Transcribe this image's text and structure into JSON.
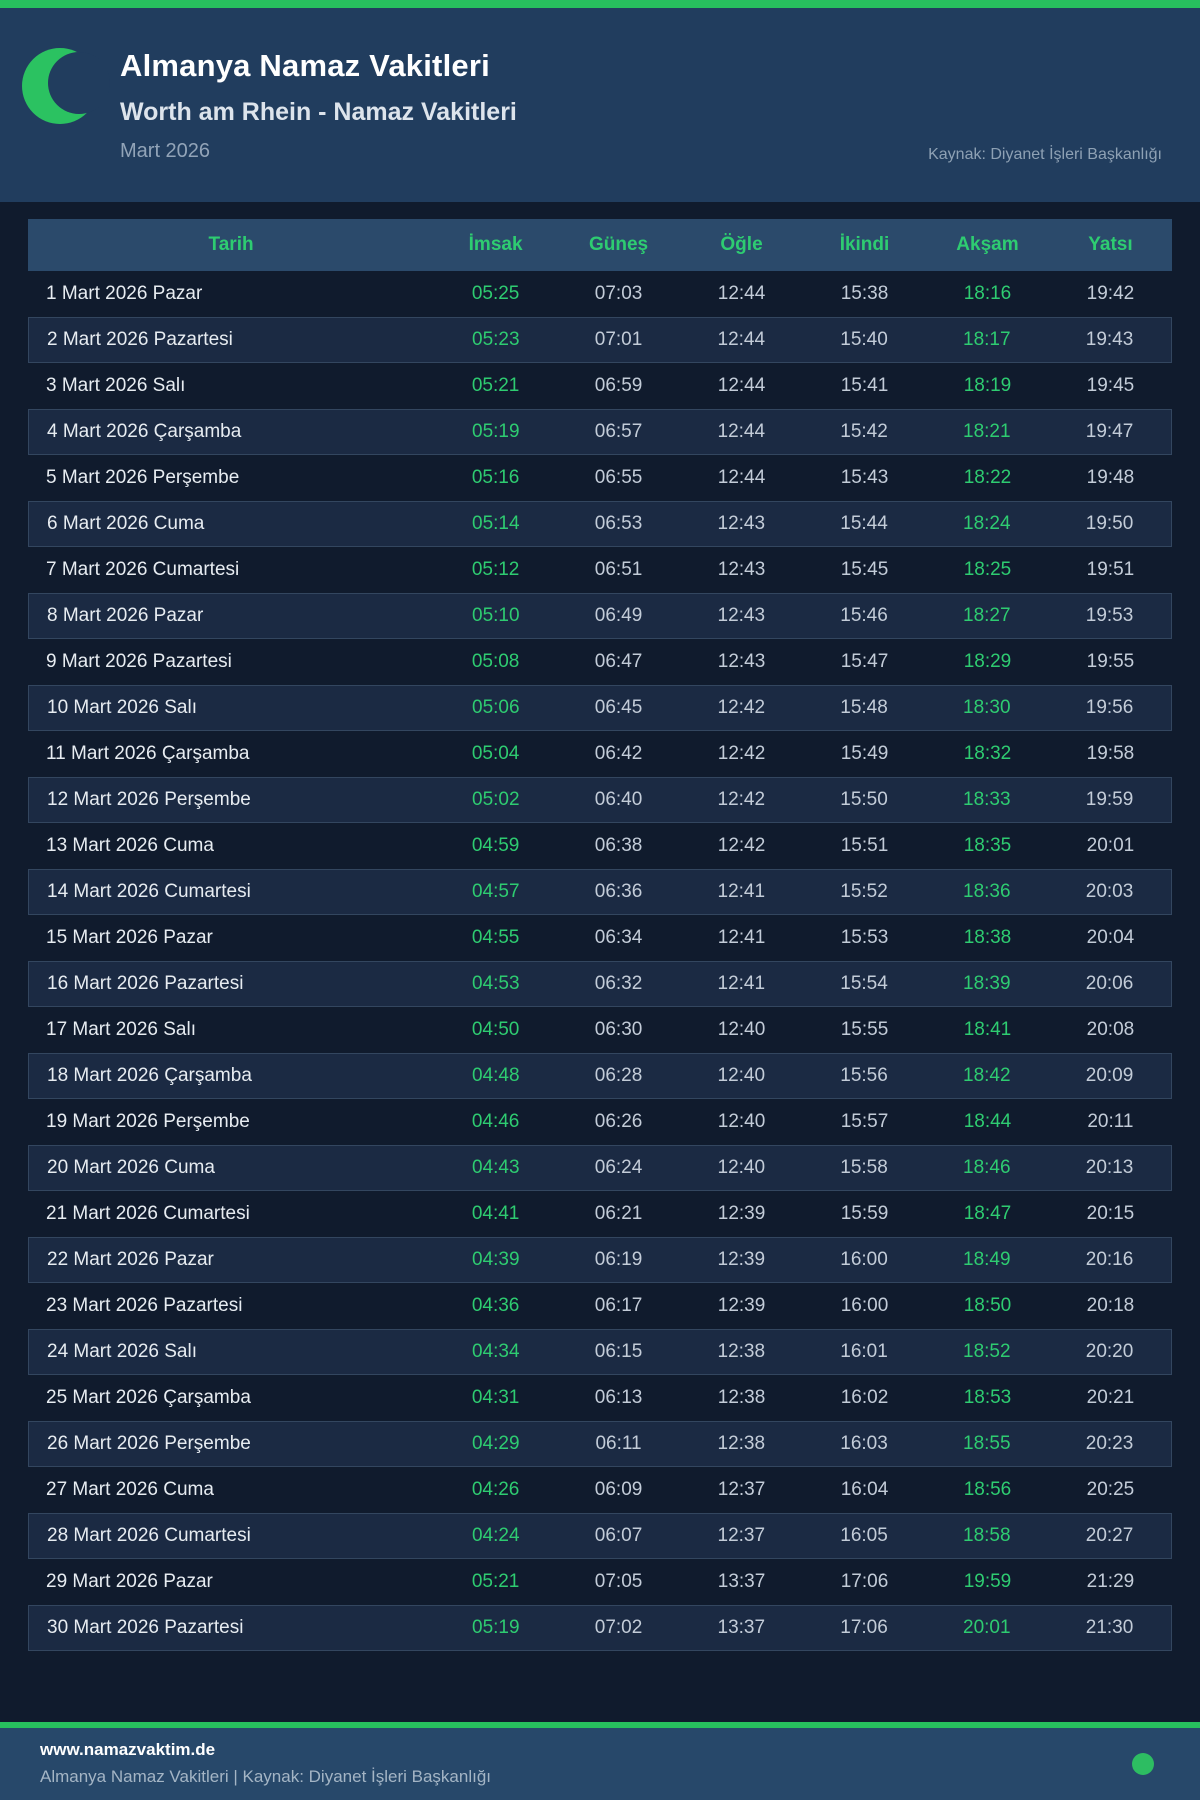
{
  "header": {
    "title": "Almanya Namaz Vakitleri",
    "subtitle": "Worth am Rhein - Namaz Vakitleri",
    "period": "Mart 2026",
    "source": "Kaynak: Diyanet İşleri Başkanlığı"
  },
  "table": {
    "columns": [
      "Tarih",
      "İmsak",
      "Güneş",
      "Öğle",
      "İkindi",
      "Akşam",
      "Yatsı"
    ],
    "green_time_columns": [
      "İmsak",
      "Akşam"
    ],
    "rows": [
      {
        "date": "1 Mart 2026 Pazar",
        "times": [
          "05:25",
          "07:03",
          "12:44",
          "15:38",
          "18:16",
          "19:42"
        ]
      },
      {
        "date": "2 Mart 2026 Pazartesi",
        "times": [
          "05:23",
          "07:01",
          "12:44",
          "15:40",
          "18:17",
          "19:43"
        ]
      },
      {
        "date": "3 Mart 2026 Salı",
        "times": [
          "05:21",
          "06:59",
          "12:44",
          "15:41",
          "18:19",
          "19:45"
        ]
      },
      {
        "date": "4 Mart 2026 Çarşamba",
        "times": [
          "05:19",
          "06:57",
          "12:44",
          "15:42",
          "18:21",
          "19:47"
        ]
      },
      {
        "date": "5 Mart 2026 Perşembe",
        "times": [
          "05:16",
          "06:55",
          "12:44",
          "15:43",
          "18:22",
          "19:48"
        ]
      },
      {
        "date": "6 Mart 2026 Cuma",
        "times": [
          "05:14",
          "06:53",
          "12:43",
          "15:44",
          "18:24",
          "19:50"
        ]
      },
      {
        "date": "7 Mart 2026 Cumartesi",
        "times": [
          "05:12",
          "06:51",
          "12:43",
          "15:45",
          "18:25",
          "19:51"
        ]
      },
      {
        "date": "8 Mart 2026 Pazar",
        "times": [
          "05:10",
          "06:49",
          "12:43",
          "15:46",
          "18:27",
          "19:53"
        ]
      },
      {
        "date": "9 Mart 2026 Pazartesi",
        "times": [
          "05:08",
          "06:47",
          "12:43",
          "15:47",
          "18:29",
          "19:55"
        ]
      },
      {
        "date": "10 Mart 2026 Salı",
        "times": [
          "05:06",
          "06:45",
          "12:42",
          "15:48",
          "18:30",
          "19:56"
        ]
      },
      {
        "date": "11 Mart 2026 Çarşamba",
        "times": [
          "05:04",
          "06:42",
          "12:42",
          "15:49",
          "18:32",
          "19:58"
        ]
      },
      {
        "date": "12 Mart 2026 Perşembe",
        "times": [
          "05:02",
          "06:40",
          "12:42",
          "15:50",
          "18:33",
          "19:59"
        ]
      },
      {
        "date": "13 Mart 2026 Cuma",
        "times": [
          "04:59",
          "06:38",
          "12:42",
          "15:51",
          "18:35",
          "20:01"
        ]
      },
      {
        "date": "14 Mart 2026 Cumartesi",
        "times": [
          "04:57",
          "06:36",
          "12:41",
          "15:52",
          "18:36",
          "20:03"
        ]
      },
      {
        "date": "15 Mart 2026 Pazar",
        "times": [
          "04:55",
          "06:34",
          "12:41",
          "15:53",
          "18:38",
          "20:04"
        ]
      },
      {
        "date": "16 Mart 2026 Pazartesi",
        "times": [
          "04:53",
          "06:32",
          "12:41",
          "15:54",
          "18:39",
          "20:06"
        ]
      },
      {
        "date": "17 Mart 2026 Salı",
        "times": [
          "04:50",
          "06:30",
          "12:40",
          "15:55",
          "18:41",
          "20:08"
        ]
      },
      {
        "date": "18 Mart 2026 Çarşamba",
        "times": [
          "04:48",
          "06:28",
          "12:40",
          "15:56",
          "18:42",
          "20:09"
        ]
      },
      {
        "date": "19 Mart 2026 Perşembe",
        "times": [
          "04:46",
          "06:26",
          "12:40",
          "15:57",
          "18:44",
          "20:11"
        ]
      },
      {
        "date": "20 Mart 2026 Cuma",
        "times": [
          "04:43",
          "06:24",
          "12:40",
          "15:58",
          "18:46",
          "20:13"
        ]
      },
      {
        "date": "21 Mart 2026 Cumartesi",
        "times": [
          "04:41",
          "06:21",
          "12:39",
          "15:59",
          "18:47",
          "20:15"
        ]
      },
      {
        "date": "22 Mart 2026 Pazar",
        "times": [
          "04:39",
          "06:19",
          "12:39",
          "16:00",
          "18:49",
          "20:16"
        ]
      },
      {
        "date": "23 Mart 2026 Pazartesi",
        "times": [
          "04:36",
          "06:17",
          "12:39",
          "16:00",
          "18:50",
          "20:18"
        ]
      },
      {
        "date": "24 Mart 2026 Salı",
        "times": [
          "04:34",
          "06:15",
          "12:38",
          "16:01",
          "18:52",
          "20:20"
        ]
      },
      {
        "date": "25 Mart 2026 Çarşamba",
        "times": [
          "04:31",
          "06:13",
          "12:38",
          "16:02",
          "18:53",
          "20:21"
        ]
      },
      {
        "date": "26 Mart 2026 Perşembe",
        "times": [
          "04:29",
          "06:11",
          "12:38",
          "16:03",
          "18:55",
          "20:23"
        ]
      },
      {
        "date": "27 Mart 2026 Cuma",
        "times": [
          "04:26",
          "06:09",
          "12:37",
          "16:04",
          "18:56",
          "20:25"
        ]
      },
      {
        "date": "28 Mart 2026 Cumartesi",
        "times": [
          "04:24",
          "06:07",
          "12:37",
          "16:05",
          "18:58",
          "20:27"
        ]
      },
      {
        "date": "29 Mart 2026 Pazar",
        "times": [
          "05:21",
          "07:05",
          "13:37",
          "17:06",
          "19:59",
          "21:29"
        ]
      },
      {
        "date": "30 Mart 2026 Pazartesi",
        "times": [
          "05:19",
          "07:02",
          "13:37",
          "17:06",
          "20:01",
          "21:30"
        ]
      }
    ]
  },
  "footer": {
    "site": "www.namazvaktim.de",
    "tagline": "Almanya Namaz Vakitleri | Kaynak: Diyanet İşleri Başkanlığı"
  },
  "colors": {
    "accent_green": "#2ecc71",
    "bar_green": "#27c05e",
    "header_bg": "#213d5e",
    "page_bg": "#101b2d",
    "table_header_bg": "#2b4a6b",
    "striped_row_bg": "#1b2a43",
    "striped_row_border": "#33465f",
    "footer_bg": "#27486a",
    "date_text": "#e7ecf1",
    "time_text": "#c3ccd8",
    "muted_text": "#92a4b8"
  }
}
